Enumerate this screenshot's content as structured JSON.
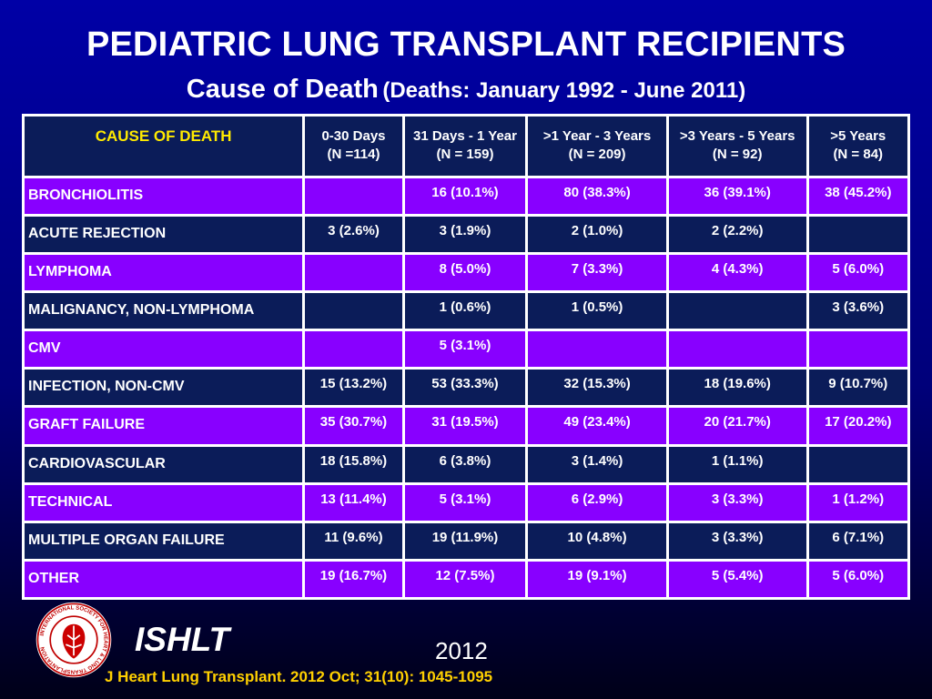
{
  "title": "PEDIATRIC LUNG TRANSPLANT RECIPIENTS",
  "subtitle": {
    "main": "Cause of Death",
    "paren": "(Deaths: January 1992 - June 2011)"
  },
  "table": {
    "headers": [
      {
        "line1": "CAUSE OF DEATH",
        "line2": ""
      },
      {
        "line1": "0-30 Days",
        "line2": "(N =114)"
      },
      {
        "line1": "31 Days - 1 Year",
        "line2": "(N = 159)"
      },
      {
        "line1": ">1 Year - 3 Years",
        "line2": "(N = 209)"
      },
      {
        "line1": ">3 Years - 5 Years",
        "line2": "(N = 92)"
      },
      {
        "line1": ">5 Years",
        "line2": "(N = 84)"
      }
    ],
    "rows": [
      {
        "cause": "BRONCHIOLITIS",
        "cells": [
          "",
          "16 (10.1%)",
          "80 (38.3%)",
          "36 (39.1%)",
          "38 (45.2%)"
        ]
      },
      {
        "cause": "ACUTE REJECTION",
        "cells": [
          "3 (2.6%)",
          "3 (1.9%)",
          "2 (1.0%)",
          "2 (2.2%)",
          ""
        ]
      },
      {
        "cause": "LYMPHOMA",
        "cells": [
          "",
          "8 (5.0%)",
          "7 (3.3%)",
          "4 (4.3%)",
          "5 (6.0%)"
        ]
      },
      {
        "cause": "MALIGNANCY, NON-LYMPHOMA",
        "cells": [
          "",
          "1 (0.6%)",
          "1 (0.5%)",
          "",
          "3 (3.6%)"
        ]
      },
      {
        "cause": "CMV",
        "cells": [
          "",
          "5 (3.1%)",
          "",
          "",
          ""
        ]
      },
      {
        "cause": "INFECTION, NON-CMV",
        "cells": [
          "15 (13.2%)",
          "53 (33.3%)",
          "32 (15.3%)",
          "18 (19.6%)",
          "9 (10.7%)"
        ]
      },
      {
        "cause": "GRAFT FAILURE",
        "cells": [
          "35 (30.7%)",
          "31 (19.5%)",
          "49 (23.4%)",
          "20 (21.7%)",
          "17 (20.2%)"
        ]
      },
      {
        "cause": "CARDIOVASCULAR",
        "cells": [
          "18 (15.8%)",
          "6 (3.8%)",
          "3 (1.4%)",
          "1 (1.1%)",
          ""
        ]
      },
      {
        "cause": "TECHNICAL",
        "cells": [
          "13 (11.4%)",
          "5 (3.1%)",
          "6 (2.9%)",
          "3 (3.3%)",
          "1 (1.2%)"
        ]
      },
      {
        "cause": "MULTIPLE ORGAN FAILURE",
        "cells": [
          "11 (9.6%)",
          "19 (11.9%)",
          "10 (4.8%)",
          "3 (3.3%)",
          "6 (7.1%)"
        ]
      },
      {
        "cause": "OTHER",
        "cells": [
          "19 (16.7%)",
          "12 (7.5%)",
          "19 (9.1%)",
          "5 (5.4%)",
          "5 (6.0%)"
        ]
      }
    ]
  },
  "footer": {
    "org": "ISHLT",
    "year": "2012",
    "citation": "J Heart Lung Transplant.  2012 Oct; 31(10): 1045-1095",
    "logo_icon": "ishlt-seal-icon",
    "logo_ring_text": "INTERNATIONAL SOCIETY FOR HEART & LUNG TRANSPLANTATION"
  },
  "colors": {
    "background_top": "#0000a6",
    "background_bottom": "#000018",
    "header_label": "#ffea00",
    "row_purple": "#8800ff",
    "row_navy": "#0b1c59",
    "citation": "#ffd000"
  }
}
